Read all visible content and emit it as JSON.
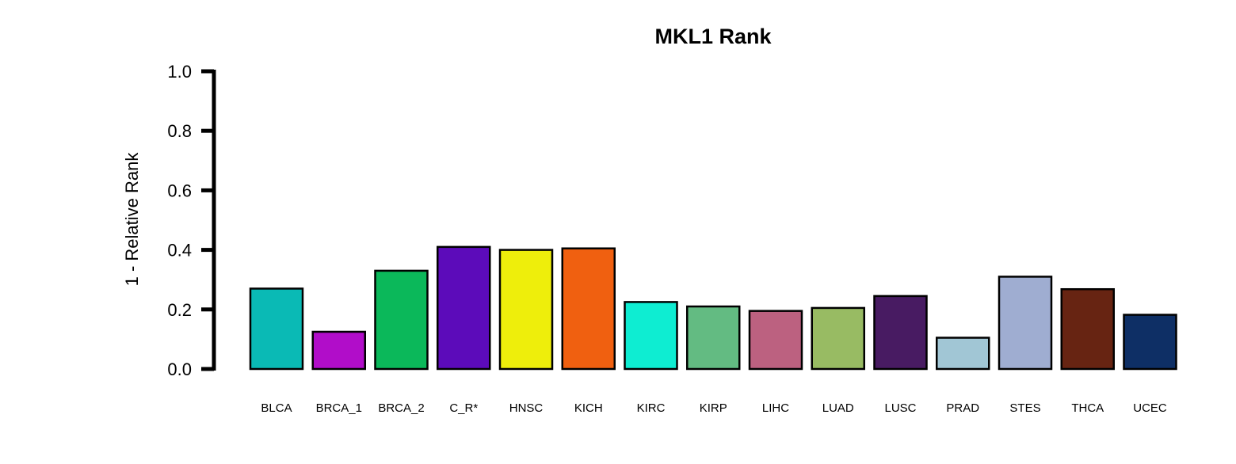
{
  "chart_data": {
    "type": "bar",
    "title": "MKL1 Rank",
    "xlabel": "",
    "ylabel": "1 - Relative Rank",
    "ylim": [
      0,
      1.0
    ],
    "yticks": [
      "0.0",
      "0.2",
      "0.4",
      "0.6",
      "0.8",
      "1.0"
    ],
    "grid": false,
    "categories": [
      "BLCA",
      "BRCA_1",
      "BRCA_2",
      "C_R*",
      "HNSC",
      "KICH",
      "KIRC",
      "KIRP",
      "LIHC",
      "LUAD",
      "LUSC",
      "PRAD",
      "STES",
      "THCA",
      "UCEC"
    ],
    "values": [
      0.27,
      0.125,
      0.33,
      0.41,
      0.4,
      0.405,
      0.225,
      0.21,
      0.195,
      0.205,
      0.245,
      0.105,
      0.31,
      0.268,
      0.182
    ],
    "colors": [
      "#0abab5",
      "#b10dc9",
      "#0bb85a",
      "#5c0bba",
      "#eeee0b",
      "#f06010",
      "#0eedd2",
      "#63bb82",
      "#bc6180",
      "#98bb63",
      "#481b62",
      "#a1c6d5",
      "#9fadd1",
      "#672412",
      "#0e2f65"
    ]
  }
}
